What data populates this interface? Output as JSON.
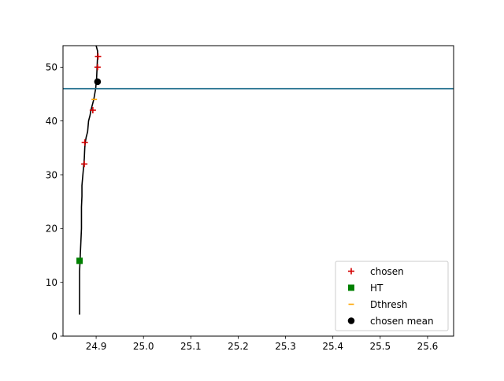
{
  "chart_data": {
    "type": "line",
    "title": "",
    "xlabel": "",
    "ylabel": "",
    "xlim": [
      24.83,
      25.655
    ],
    "ylim": [
      0,
      54
    ],
    "x_ticks": [
      24.9,
      25.0,
      25.1,
      25.2,
      25.3,
      25.4,
      25.5,
      25.6
    ],
    "x_tick_labels": [
      "24.9",
      "25.0",
      "25.1",
      "25.2",
      "25.3",
      "25.4",
      "25.5",
      "25.6"
    ],
    "y_ticks": [
      0,
      10,
      20,
      30,
      40,
      50
    ],
    "y_tick_labels": [
      "0",
      "10",
      "20",
      "30",
      "40",
      "50"
    ],
    "grid": false,
    "legend_position": "lower-right",
    "profile": {
      "color": "#000000",
      "x": [
        24.865,
        24.865,
        24.865,
        24.866,
        24.867,
        24.868,
        24.869,
        24.869,
        24.869,
        24.87,
        24.87,
        24.871,
        24.873,
        24.875,
        24.876,
        24.877,
        24.879,
        24.882,
        24.884,
        24.887,
        24.889,
        24.892,
        24.895,
        24.897,
        24.899,
        24.9,
        24.901,
        24.902,
        24.903,
        24.903,
        24.9
      ],
      "y": [
        4,
        8,
        12,
        14,
        16,
        18,
        20,
        22,
        24,
        26,
        28,
        29,
        31,
        33,
        35,
        36,
        37,
        38,
        40,
        41,
        42,
        43,
        44,
        45,
        46,
        47,
        48,
        50,
        52,
        53,
        54
      ]
    },
    "hline": {
      "y": 46,
      "color": "#1f6e8c"
    },
    "series": [
      {
        "name": "chosen",
        "marker": "plus",
        "color": "#d40000",
        "x": [
          24.875,
          24.876,
          24.893,
          24.903,
          24.904
        ],
        "y": [
          32,
          36,
          42,
          50,
          52
        ]
      },
      {
        "name": "HT",
        "marker": "square",
        "color": "#008000",
        "x": [
          24.865
        ],
        "y": [
          14
        ]
      },
      {
        "name": "Dthresh",
        "marker": "hline",
        "color": "#ffa500",
        "x": [
          24.896
        ],
        "y": [
          44
        ]
      },
      {
        "name": "chosen mean",
        "marker": "circle",
        "color": "#000000",
        "x": [
          24.903
        ],
        "y": [
          47.3
        ]
      }
    ]
  }
}
